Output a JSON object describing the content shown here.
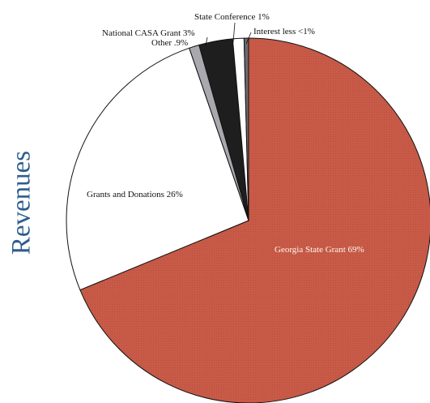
{
  "side_title": "Revenues",
  "chart_data": {
    "type": "pie",
    "title": "Revenues",
    "slices": [
      {
        "label": "Georgia State Grant 69%",
        "value": 69,
        "color": "#c85a48"
      },
      {
        "label": "Grants and Donations 26%",
        "value": 26,
        "color": "#ffffff"
      },
      {
        "label": "Other .9%",
        "value": 0.9,
        "color": "#a8a8ae"
      },
      {
        "label": "National CASA Grant 3%",
        "value": 3,
        "color": "#1e1e1e"
      },
      {
        "label": "State Conference 1%",
        "value": 1,
        "color": "#ffffff"
      },
      {
        "label": "Interest less <1%",
        "value": 0.4,
        "color": "#6a6a70"
      }
    ]
  }
}
